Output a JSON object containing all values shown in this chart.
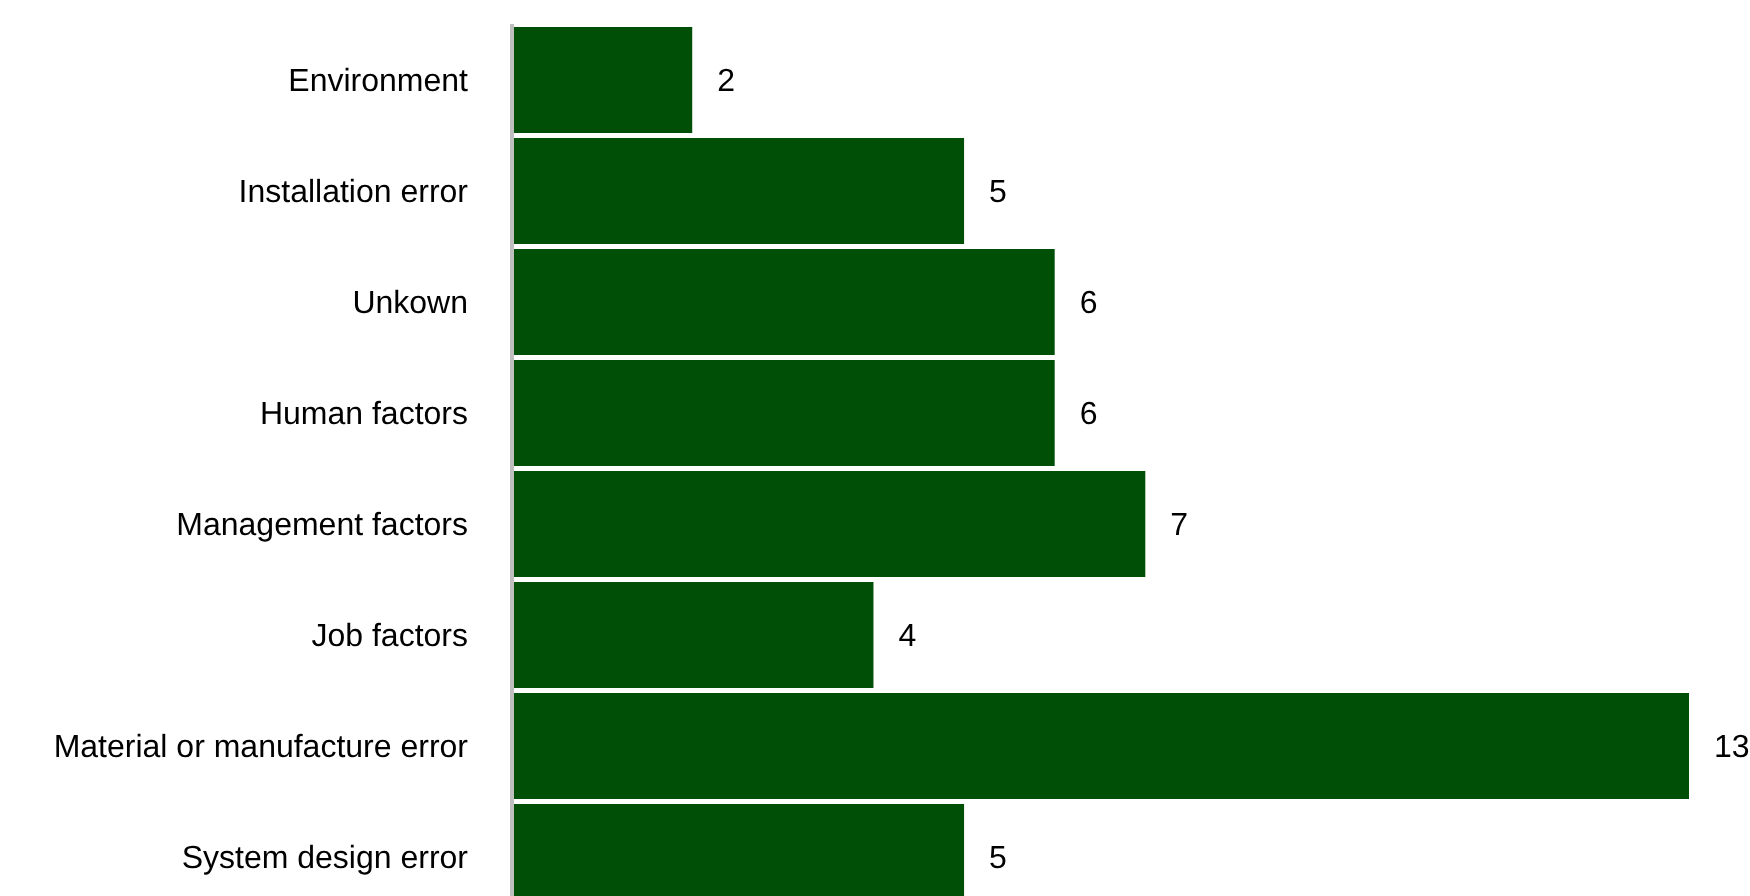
{
  "chart_data": {
    "type": "bar",
    "orientation": "horizontal",
    "categories": [
      "Environment",
      "Installation error",
      "Unkown",
      "Human factors",
      "Management factors",
      "Job factors",
      "Material or manufacture error",
      "System design error"
    ],
    "values": [
      2,
      5,
      6,
      6,
      7,
      4,
      13,
      5
    ],
    "color": "#004f07",
    "data_labels": true
  }
}
